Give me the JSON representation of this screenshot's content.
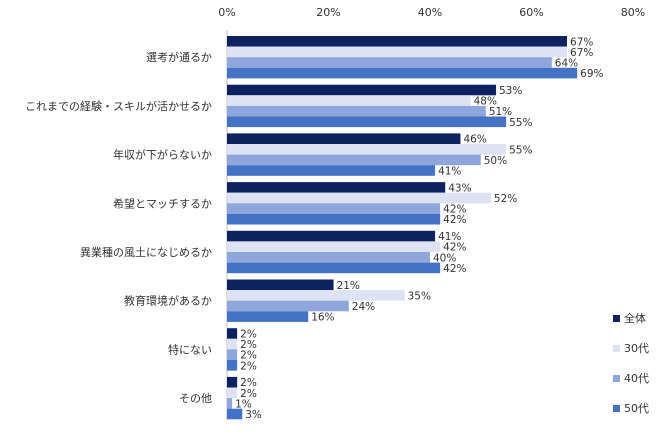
{
  "chart_data": {
    "type": "bar",
    "orientation": "horizontal",
    "categories": [
      "選考が通るか",
      "これまでの経験・スキルが活かせるか",
      "年収が下がらないか",
      "希望とマッチするか",
      "異業種の風土になじめるか",
      "教育環境があるか",
      "特にない",
      "その他"
    ],
    "series": [
      {
        "name": "全体",
        "color": "#0e2260",
        "values": [
          67,
          53,
          46,
          43,
          41,
          21,
          2,
          2
        ]
      },
      {
        "name": "30代",
        "color": "#dde3f3",
        "values": [
          67,
          48,
          55,
          52,
          42,
          35,
          2,
          2
        ]
      },
      {
        "name": "40代",
        "color": "#8ea6dc",
        "values": [
          64,
          51,
          50,
          42,
          40,
          24,
          2,
          1
        ]
      },
      {
        "name": "50代",
        "color": "#4472c4",
        "values": [
          69,
          55,
          41,
          42,
          42,
          16,
          2,
          3
        ]
      }
    ],
    "value_labels": [
      [
        "67%",
        "53%",
        "46%",
        "43%",
        "41%",
        "21%",
        "2%",
        "2%"
      ],
      [
        "67%",
        "48%",
        "55%",
        "52%",
        "42%",
        "35%",
        "2%",
        "2%"
      ],
      [
        "64%",
        "51%",
        "50%",
        "42%",
        "40%",
        "24%",
        "2%",
        "1%"
      ],
      [
        "69%",
        "55%",
        "41%",
        "42%",
        "42%",
        "16%",
        "2%",
        "3%"
      ]
    ],
    "x_ticks": [
      "0%",
      "20%",
      "40%",
      "60%",
      "80%"
    ],
    "x_tick_values": [
      0,
      20,
      40,
      60,
      80
    ],
    "xlim": [
      0,
      80
    ],
    "grid": false,
    "legend_position": "bottom-right"
  }
}
